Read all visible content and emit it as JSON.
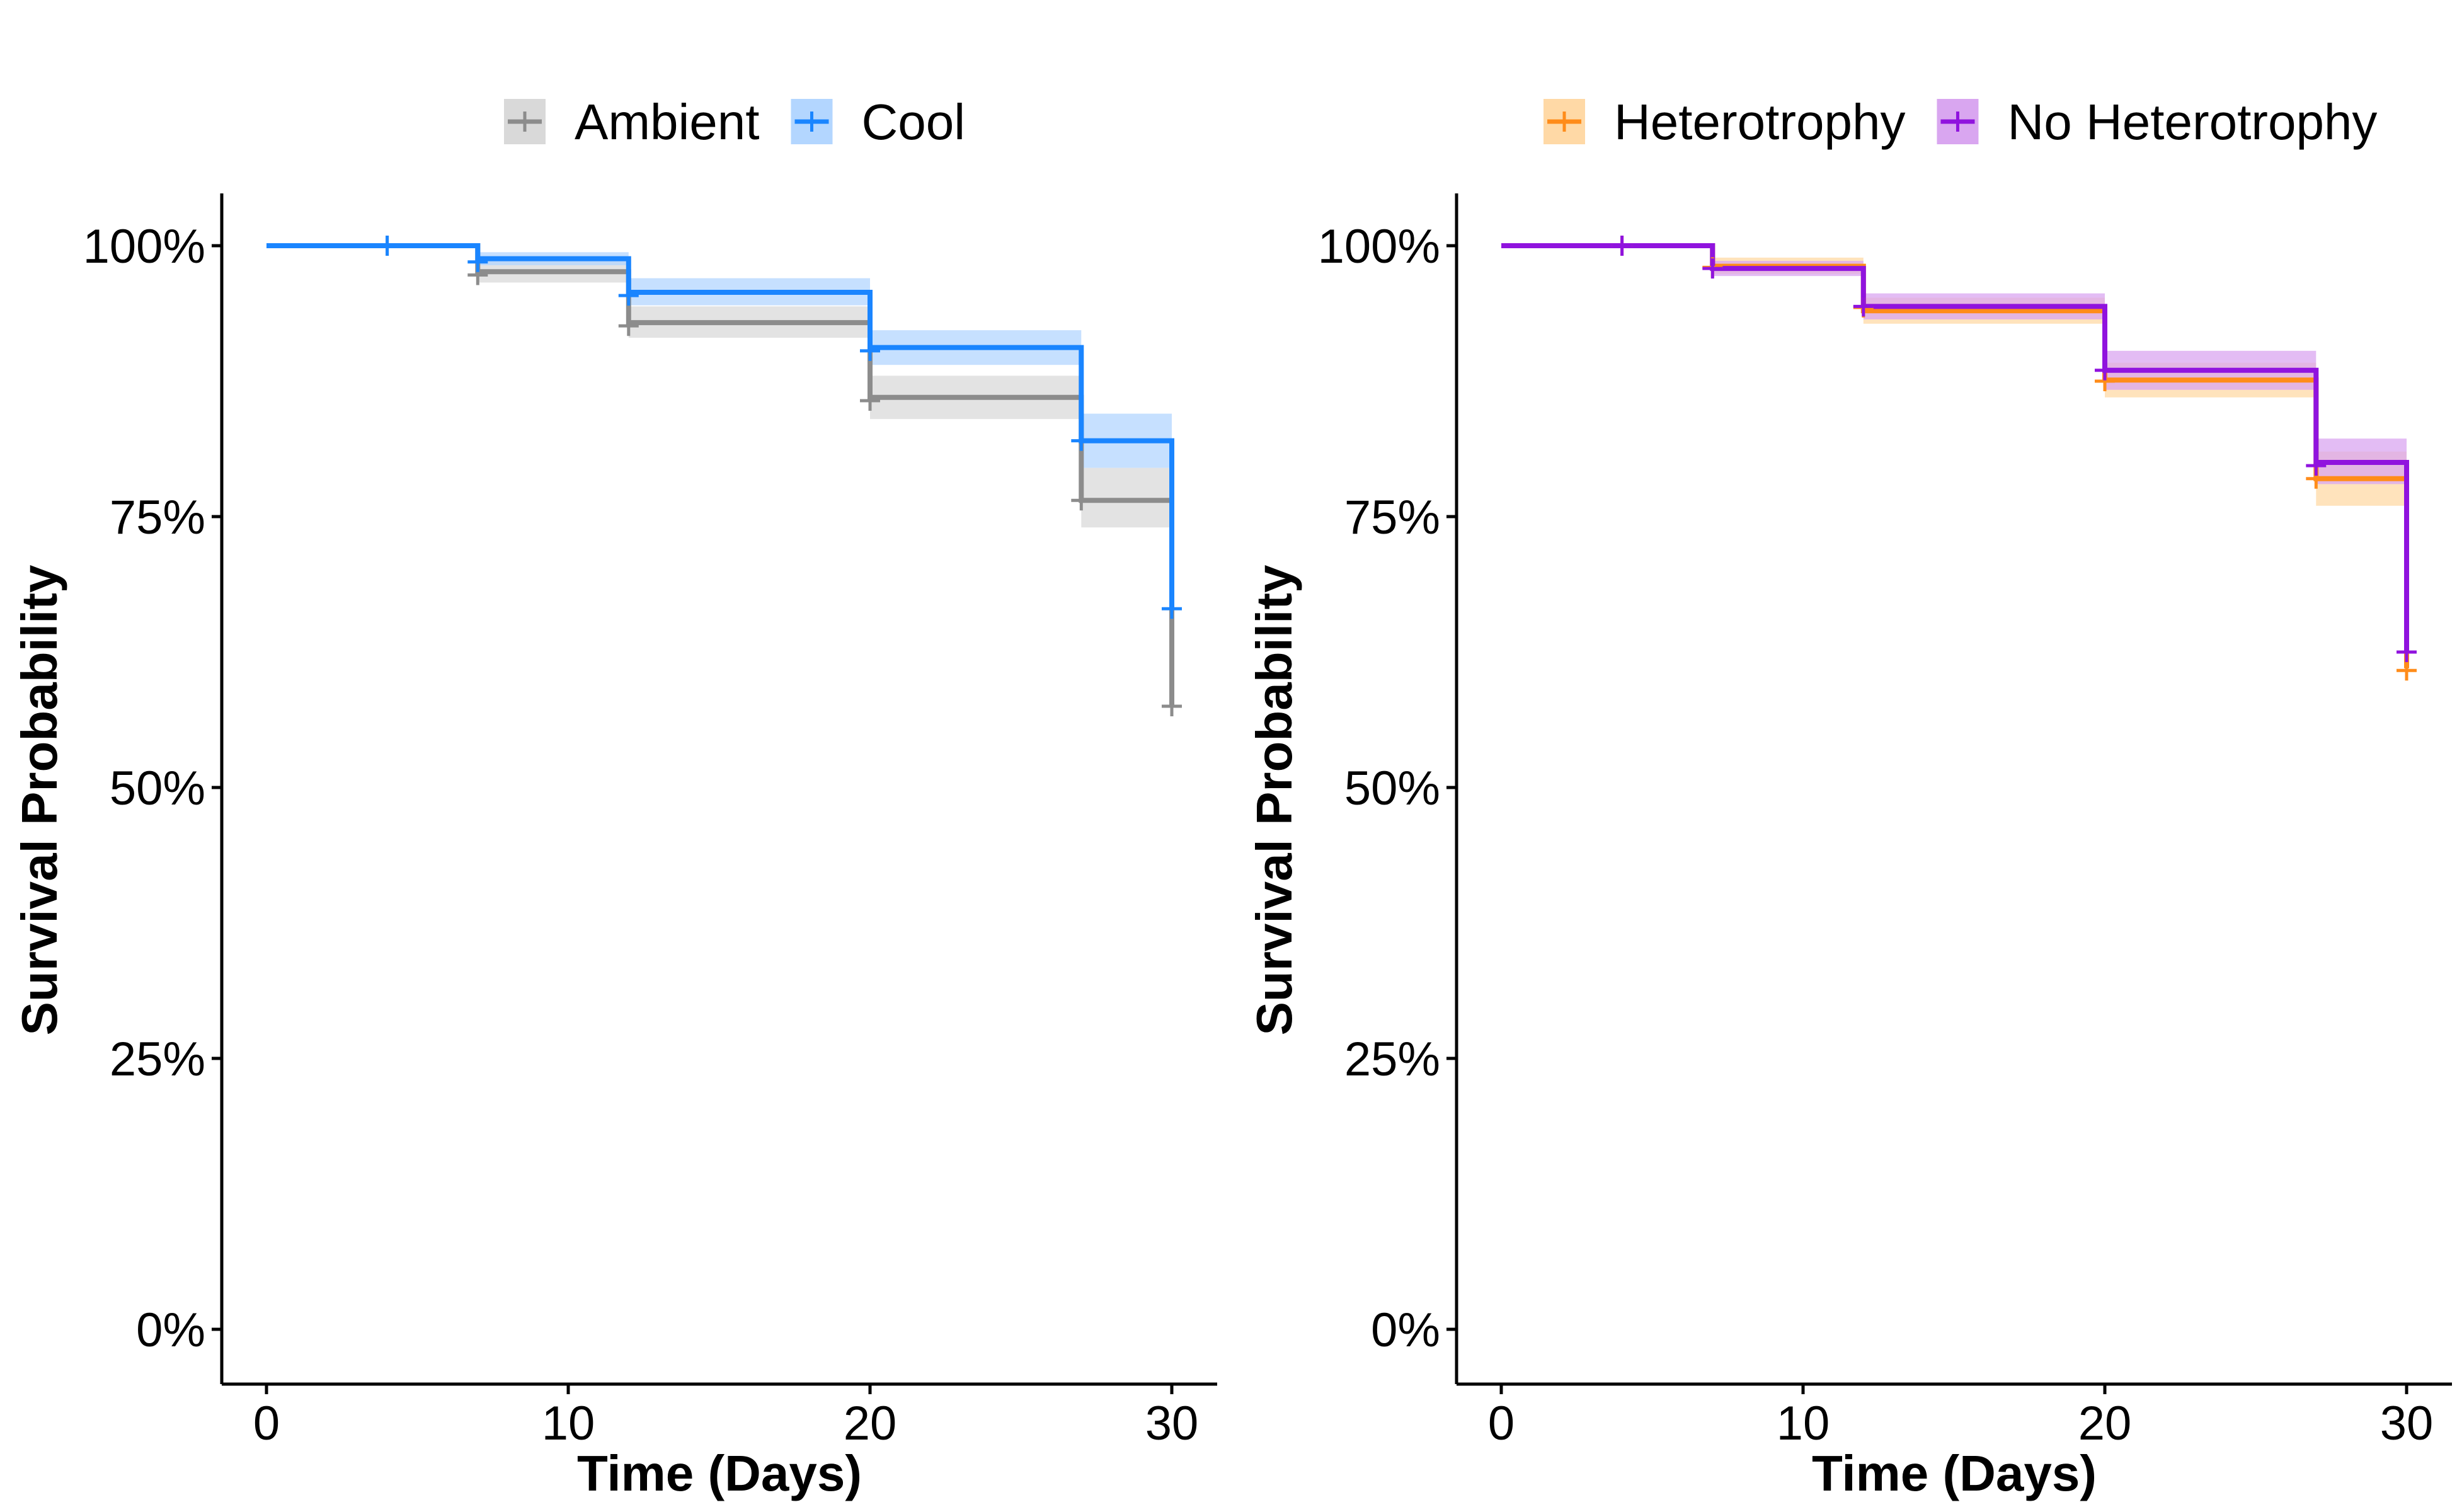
{
  "chart_data": [
    {
      "type": "line",
      "subtype": "kaplan-meier survival curve",
      "title": "",
      "xlabel": "Time (Days)",
      "ylabel": "Survival Probability",
      "xlim": [
        0,
        30
      ],
      "ylim": [
        0,
        1
      ],
      "x_ticks": [
        0,
        10,
        20,
        30
      ],
      "x_tick_labels": [
        "0",
        "10",
        "20",
        "30"
      ],
      "y_ticks": [
        0,
        0.25,
        0.5,
        0.75,
        1
      ],
      "y_tick_labels": [
        "0%",
        "25%",
        "50%",
        "75%",
        "100%"
      ],
      "grid": false,
      "legend_position": "top",
      "series": [
        {
          "name": "Ambient",
          "color": "#8c8c8c",
          "band_color": "#d9d9d9",
          "steps": [
            {
              "x": 0,
              "y": 1.0,
              "lo": 1.0,
              "hi": 1.0
            },
            {
              "x": 7,
              "y": 0.976,
              "lo": 0.966,
              "hi": 0.986
            },
            {
              "x": 12,
              "y": 0.929,
              "lo": 0.915,
              "hi": 0.944
            },
            {
              "x": 20,
              "y": 0.86,
              "lo": 0.84,
              "hi": 0.88
            },
            {
              "x": 27,
              "y": 0.765,
              "lo": 0.74,
              "hi": 0.795
            }
          ],
          "end_x": 30,
          "final_y": 0.575,
          "censor_marks": [
            {
              "x": 4,
              "y": 1.0
            },
            {
              "x": 7,
              "y": 0.973
            },
            {
              "x": 12,
              "y": 0.926
            },
            {
              "x": 20,
              "y": 0.857
            },
            {
              "x": 27,
              "y": 0.765
            },
            {
              "x": 30,
              "y": 0.575
            }
          ]
        },
        {
          "name": "Cool",
          "color": "#1a85ff",
          "band_color": "#b3d6ff",
          "steps": [
            {
              "x": 0,
              "y": 1.0,
              "lo": 1.0,
              "hi": 1.0
            },
            {
              "x": 7,
              "y": 0.988,
              "lo": 0.982,
              "hi": 0.994
            },
            {
              "x": 12,
              "y": 0.957,
              "lo": 0.945,
              "hi": 0.97
            },
            {
              "x": 20,
              "y": 0.906,
              "lo": 0.89,
              "hi": 0.922
            },
            {
              "x": 27,
              "y": 0.82,
              "lo": 0.795,
              "hi": 0.845
            }
          ],
          "end_x": 30,
          "final_y": 0.665,
          "censor_marks": [
            {
              "x": 4,
              "y": 1.0
            },
            {
              "x": 7,
              "y": 0.985
            },
            {
              "x": 12,
              "y": 0.954
            },
            {
              "x": 20,
              "y": 0.903
            },
            {
              "x": 27,
              "y": 0.82
            },
            {
              "x": 30,
              "y": 0.665
            }
          ]
        }
      ]
    },
    {
      "type": "line",
      "subtype": "kaplan-meier survival curve",
      "title": "",
      "xlabel": "Time (Days)",
      "ylabel": "Survival Probability",
      "xlim": [
        0,
        30
      ],
      "ylim": [
        0,
        1
      ],
      "x_ticks": [
        0,
        10,
        20,
        30
      ],
      "x_tick_labels": [
        "0",
        "10",
        "20",
        "30"
      ],
      "y_ticks": [
        0,
        0.25,
        0.5,
        0.75,
        1
      ],
      "y_tick_labels": [
        "0%",
        "25%",
        "50%",
        "75%",
        "100%"
      ],
      "grid": false,
      "legend_position": "top",
      "series": [
        {
          "name": "Heterotrophy",
          "color": "#ff8c1a",
          "band_color": "#ffd9a6",
          "steps": [
            {
              "x": 0,
              "y": 1.0,
              "lo": 1.0,
              "hi": 1.0
            },
            {
              "x": 7,
              "y": 0.981,
              "lo": 0.974,
              "hi": 0.989
            },
            {
              "x": 12,
              "y": 0.94,
              "lo": 0.928,
              "hi": 0.952
            },
            {
              "x": 20,
              "y": 0.876,
              "lo": 0.86,
              "hi": 0.892
            },
            {
              "x": 27,
              "y": 0.785,
              "lo": 0.76,
              "hi": 0.81
            }
          ],
          "end_x": 30,
          "final_y": 0.61,
          "censor_marks": [
            {
              "x": 4,
              "y": 1.0
            },
            {
              "x": 7,
              "y": 0.98
            },
            {
              "x": 12,
              "y": 0.943
            },
            {
              "x": 20,
              "y": 0.875
            },
            {
              "x": 27,
              "y": 0.785
            },
            {
              "x": 30,
              "y": 0.608
            }
          ]
        },
        {
          "name": "No Heterotrophy",
          "color": "#9013de",
          "band_color": "#d9a6f0",
          "steps": [
            {
              "x": 0,
              "y": 1.0,
              "lo": 1.0,
              "hi": 1.0
            },
            {
              "x": 7,
              "y": 0.979,
              "lo": 0.972,
              "hi": 0.986
            },
            {
              "x": 12,
              "y": 0.944,
              "lo": 0.932,
              "hi": 0.956
            },
            {
              "x": 20,
              "y": 0.885,
              "lo": 0.867,
              "hi": 0.903
            },
            {
              "x": 27,
              "y": 0.8,
              "lo": 0.78,
              "hi": 0.822
            }
          ],
          "end_x": 30,
          "final_y": 0.625,
          "censor_marks": [
            {
              "x": 4,
              "y": 1.0
            },
            {
              "x": 7,
              "y": 0.979
            },
            {
              "x": 12,
              "y": 0.944
            },
            {
              "x": 20,
              "y": 0.885
            },
            {
              "x": 27,
              "y": 0.797
            },
            {
              "x": 30,
              "y": 0.625
            }
          ]
        }
      ]
    }
  ]
}
